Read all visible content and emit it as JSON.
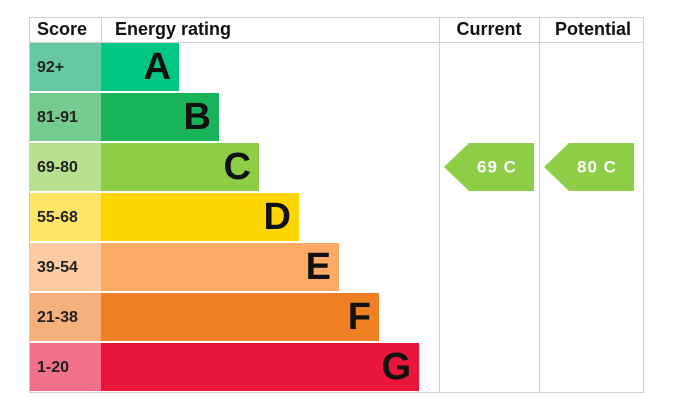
{
  "header": {
    "score": "Score",
    "rating": "Energy rating",
    "current": "Current",
    "potential": "Potential"
  },
  "bands": [
    {
      "score": "92+",
      "letter": "A",
      "color": "#00c781",
      "score_color": "#66c9a1"
    },
    {
      "score": "81-91",
      "letter": "B",
      "color": "#19b459",
      "score_color": "#74cb8f"
    },
    {
      "score": "69-80",
      "letter": "C",
      "color": "#8dce46",
      "score_color": "#badf90"
    },
    {
      "score": "55-68",
      "letter": "D",
      "color": "#ffd500",
      "score_color": "#ffe566"
    },
    {
      "score": "39-54",
      "letter": "E",
      "color": "#fcaa65",
      "score_color": "#fdcca3"
    },
    {
      "score": "21-38",
      "letter": "F",
      "color": "#ef8023",
      "score_color": "#f5b07b"
    },
    {
      "score": "1-20",
      "letter": "G",
      "color": "#e9153b",
      "score_color": "#f27189"
    }
  ],
  "current": "69 C",
  "potential": "80 C"
}
